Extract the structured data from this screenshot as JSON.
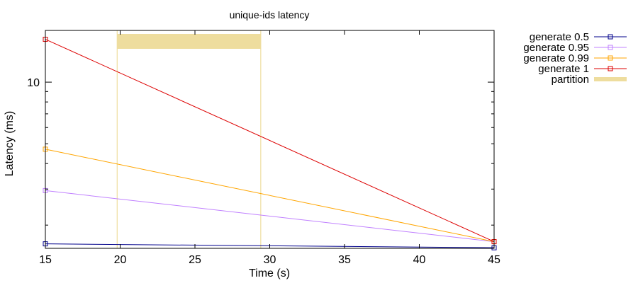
{
  "chart_data": {
    "type": "line",
    "title": "unique-ids latency",
    "xlabel": "Time (s)",
    "ylabel": "Latency (ms)",
    "xlim": [
      15,
      45
    ],
    "ylim": [
      1.54,
      17.9
    ],
    "y_scale": "log",
    "x_ticks": [
      "15",
      "20",
      "25",
      "30",
      "35",
      "40",
      "45"
    ],
    "y_ticks": [
      {
        "value": 10,
        "label": "10"
      }
    ],
    "grid": false,
    "legend_position": "outside-right",
    "series": [
      {
        "name": "generate 0.5",
        "color": "#00008b",
        "marker": "square",
        "x": [
          15,
          45
        ],
        "y": [
          1.62,
          1.55
        ]
      },
      {
        "name": "generate 0.95",
        "color": "#c080ff",
        "marker": "square",
        "x": [
          15,
          45
        ],
        "y": [
          2.95,
          1.66
        ]
      },
      {
        "name": "generate 0.99",
        "color": "#ffa500",
        "marker": "square",
        "x": [
          15,
          45
        ],
        "y": [
          4.7,
          1.66
        ]
      },
      {
        "name": "generate 1",
        "color": "#dd0000",
        "marker": "square",
        "x": [
          15,
          45
        ],
        "y": [
          16.2,
          1.66
        ]
      }
    ],
    "partition": {
      "name": "partition",
      "color": "#eedd9e",
      "start": 19.8,
      "end": 29.4
    }
  }
}
